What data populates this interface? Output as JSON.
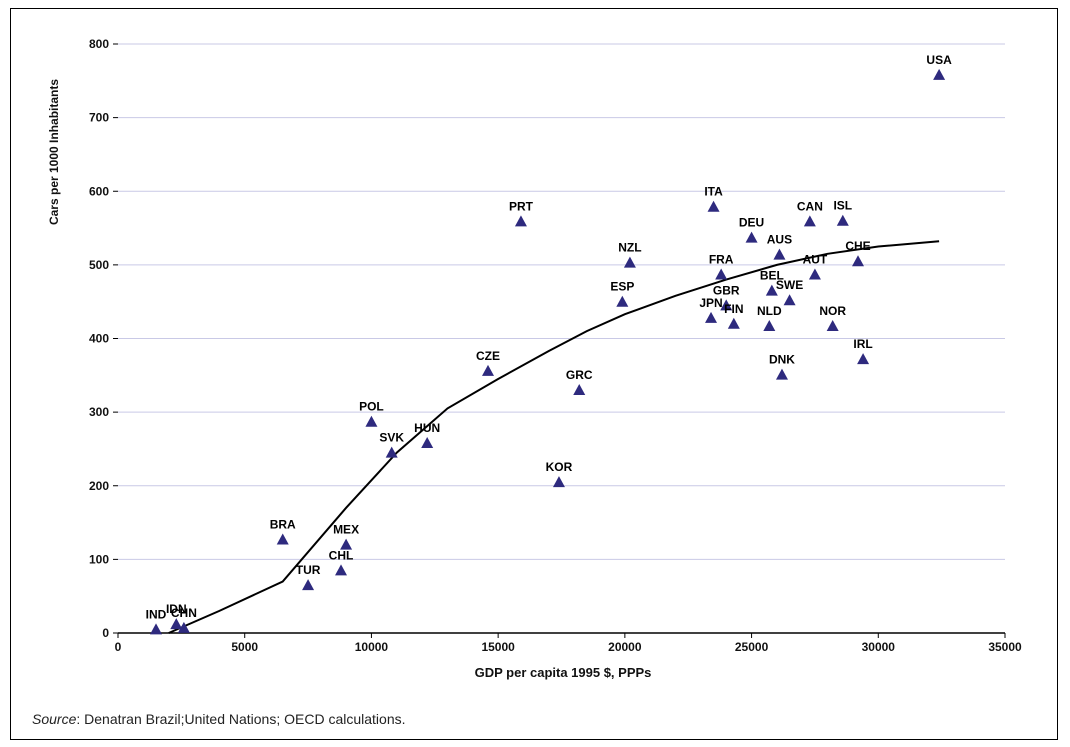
{
  "chart_data": {
    "type": "scatter",
    "title": "",
    "xlabel": "GDP per capita 1995 $, PPPs",
    "ylabel": "Cars per 1000 Inhabitants",
    "xlim": [
      0,
      35000
    ],
    "ylim": [
      0,
      800
    ],
    "xticks": [
      0,
      5000,
      10000,
      15000,
      20000,
      25000,
      30000,
      35000
    ],
    "yticks": [
      0,
      100,
      200,
      300,
      400,
      500,
      600,
      700,
      800
    ],
    "grid": "horizontal",
    "marker": "triangle",
    "colors": {
      "marker": "#2e2a7e",
      "grid": "#c9c9e6",
      "trend": "#000000"
    },
    "points": [
      {
        "label": "IND",
        "x": 1500,
        "y": 5
      },
      {
        "label": "IDN",
        "x": 2300,
        "y": 12
      },
      {
        "label": "CHN",
        "x": 2600,
        "y": 7
      },
      {
        "label": "BRA",
        "x": 6500,
        "y": 127
      },
      {
        "label": "TUR",
        "x": 7500,
        "y": 65
      },
      {
        "label": "CHL",
        "x": 8800,
        "y": 85
      },
      {
        "label": "MEX",
        "x": 9000,
        "y": 120
      },
      {
        "label": "POL",
        "x": 10000,
        "y": 287
      },
      {
        "label": "SVK",
        "x": 10800,
        "y": 245
      },
      {
        "label": "HUN",
        "x": 12200,
        "y": 258
      },
      {
        "label": "CZE",
        "x": 14600,
        "y": 356
      },
      {
        "label": "PRT",
        "x": 15900,
        "y": 559
      },
      {
        "label": "KOR",
        "x": 17400,
        "y": 205
      },
      {
        "label": "GRC",
        "x": 18200,
        "y": 330
      },
      {
        "label": "ESP",
        "x": 19900,
        "y": 450
      },
      {
        "label": "NZL",
        "x": 20200,
        "y": 503
      },
      {
        "label": "JPN",
        "x": 23400,
        "y": 428
      },
      {
        "label": "ITA",
        "x": 23500,
        "y": 579
      },
      {
        "label": "FRA",
        "x": 23800,
        "y": 487
      },
      {
        "label": "GBR",
        "x": 24000,
        "y": 445
      },
      {
        "label": "FIN",
        "x": 24300,
        "y": 420
      },
      {
        "label": "DEU",
        "x": 25000,
        "y": 537
      },
      {
        "label": "NLD",
        "x": 25700,
        "y": 417
      },
      {
        "label": "BEL",
        "x": 25800,
        "y": 465
      },
      {
        "label": "AUS",
        "x": 26100,
        "y": 514
      },
      {
        "label": "DNK",
        "x": 26200,
        "y": 351
      },
      {
        "label": "SWE",
        "x": 26500,
        "y": 452
      },
      {
        "label": "CAN",
        "x": 27300,
        "y": 559
      },
      {
        "label": "AUT",
        "x": 27500,
        "y": 487
      },
      {
        "label": "NOR",
        "x": 28200,
        "y": 417
      },
      {
        "label": "ISL",
        "x": 28600,
        "y": 560
      },
      {
        "label": "CHE",
        "x": 29200,
        "y": 505
      },
      {
        "label": "IRL",
        "x": 29400,
        "y": 372
      },
      {
        "label": "USA",
        "x": 32400,
        "y": 758
      }
    ],
    "trendline": [
      {
        "x": 2000,
        "y": 0
      },
      {
        "x": 4000,
        "y": 30
      },
      {
        "x": 6500,
        "y": 70
      },
      {
        "x": 9000,
        "y": 170
      },
      {
        "x": 11000,
        "y": 245
      },
      {
        "x": 13000,
        "y": 305
      },
      {
        "x": 15000,
        "y": 345
      },
      {
        "x": 17000,
        "y": 383
      },
      {
        "x": 18500,
        "y": 410
      },
      {
        "x": 20000,
        "y": 433
      },
      {
        "x": 22000,
        "y": 458
      },
      {
        "x": 24000,
        "y": 480
      },
      {
        "x": 26000,
        "y": 500
      },
      {
        "x": 28000,
        "y": 515
      },
      {
        "x": 30000,
        "y": 525
      },
      {
        "x": 32400,
        "y": 532
      }
    ]
  },
  "source": {
    "label": "Source",
    "text": ": Denatran Brazil;United Nations; OECD calculations."
  }
}
